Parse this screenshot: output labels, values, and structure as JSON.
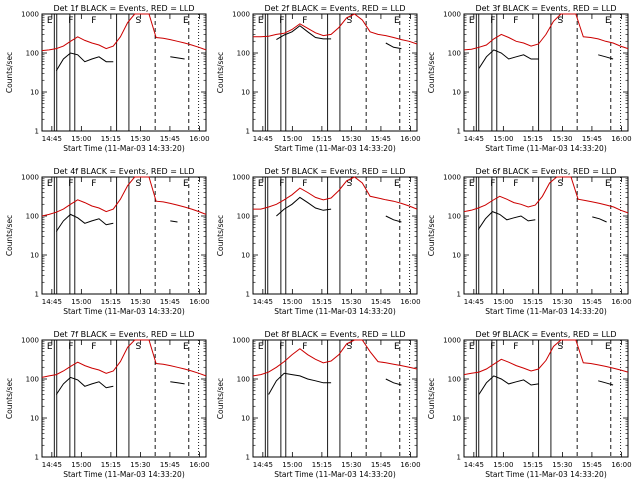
{
  "chart_data": {
    "type": "line",
    "y_scale": "log",
    "ylim": [
      1,
      1000
    ],
    "x_tick_labels": [
      "14:45",
      "15:00",
      "15:15",
      "15:30",
      "15:45",
      "16:00"
    ],
    "y_tick_labels": [
      "1",
      "10",
      "100",
      "1000"
    ],
    "xlabel": "Start Time (11-Mar-03 14:33:20)",
    "ylabel": "Counts/sec",
    "legend_text": "BLACK = Events, RED = LLD",
    "series_colors": {
      "Events": "#000000",
      "LLD": "#cc0000"
    },
    "panels": [
      {
        "title": "Det 1f",
        "marks": [
          "E",
          "F",
          "F",
          "S",
          "E"
        ],
        "red": [
          115,
          120,
          130,
          150,
          200,
          260,
          210,
          180,
          160,
          130,
          150,
          260,
          600,
          1000,
          1000,
          1000,
          250,
          240,
          220,
          200,
          180,
          160,
          140,
          120
        ],
        "black": [
          null,
          null,
          35,
          70,
          100,
          90,
          60,
          70,
          80,
          60,
          60,
          null,
          null,
          null,
          null,
          null,
          null,
          null,
          80,
          75,
          70,
          null,
          null,
          null
        ]
      },
      {
        "title": "Det 2f",
        "marks": [
          "E",
          "F",
          "F",
          "S",
          "E"
        ],
        "red": [
          260,
          260,
          270,
          300,
          320,
          400,
          560,
          430,
          330,
          280,
          300,
          450,
          800,
          1000,
          700,
          350,
          300,
          280,
          250,
          220,
          200,
          170
        ],
        "black": [
          null,
          null,
          null,
          220,
          290,
          350,
          500,
          350,
          250,
          230,
          230,
          null,
          null,
          null,
          null,
          null,
          null,
          180,
          140,
          130,
          null,
          null
        ]
      },
      {
        "title": "Det 3f",
        "marks": [
          "E",
          "F",
          "F",
          "S",
          "E"
        ],
        "red": [
          120,
          125,
          140,
          160,
          230,
          300,
          250,
          200,
          180,
          150,
          170,
          300,
          650,
          1000,
          1000,
          1000,
          260,
          250,
          230,
          200,
          180,
          150,
          130
        ],
        "black": [
          null,
          null,
          40,
          80,
          120,
          100,
          70,
          80,
          90,
          70,
          70,
          null,
          null,
          null,
          null,
          null,
          null,
          null,
          90,
          80,
          70,
          null,
          null
        ]
      },
      {
        "title": "Det 4f",
        "marks": [
          "E",
          "F",
          "F",
          "S",
          "E"
        ],
        "red": [
          100,
          110,
          125,
          150,
          200,
          260,
          220,
          180,
          160,
          130,
          150,
          270,
          600,
          1000,
          1000,
          1000,
          240,
          230,
          210,
          190,
          170,
          150,
          130,
          110
        ],
        "black": [
          null,
          null,
          40,
          75,
          110,
          90,
          65,
          75,
          85,
          60,
          65,
          null,
          null,
          null,
          null,
          null,
          null,
          null,
          75,
          70,
          null,
          null,
          null,
          null
        ]
      },
      {
        "title": "Det 5f",
        "marks": [
          "E",
          "F",
          "F",
          "S",
          "E"
        ],
        "red": [
          150,
          150,
          170,
          200,
          260,
          350,
          520,
          400,
          300,
          260,
          290,
          450,
          800,
          1000,
          700,
          320,
          290,
          260,
          240,
          210,
          180,
          150
        ],
        "black": [
          null,
          null,
          null,
          100,
          150,
          200,
          300,
          220,
          160,
          140,
          150,
          null,
          null,
          null,
          null,
          null,
          null,
          100,
          80,
          70,
          null,
          null
        ]
      },
      {
        "title": "Det 6f",
        "marks": [
          "E",
          "F",
          "F",
          "S",
          "E"
        ],
        "red": [
          130,
          140,
          160,
          190,
          250,
          320,
          270,
          220,
          200,
          170,
          190,
          320,
          700,
          1000,
          1000,
          1000,
          270,
          250,
          230,
          210,
          190,
          170,
          140,
          120
        ],
        "black": [
          null,
          null,
          45,
          85,
          130,
          110,
          80,
          90,
          100,
          75,
          80,
          null,
          null,
          null,
          null,
          null,
          null,
          null,
          95,
          85,
          70,
          null,
          null,
          null
        ]
      },
      {
        "title": "Det 7f",
        "marks": [
          "E",
          "F",
          "F",
          "S",
          "E"
        ],
        "red": [
          110,
          120,
          130,
          160,
          210,
          270,
          220,
          190,
          170,
          140,
          160,
          280,
          650,
          1000,
          1000,
          1000,
          250,
          240,
          220,
          200,
          180,
          160,
          140,
          120
        ],
        "black": [
          null,
          null,
          40,
          75,
          110,
          95,
          65,
          75,
          85,
          60,
          65,
          null,
          null,
          null,
          null,
          null,
          null,
          null,
          85,
          80,
          75,
          null,
          null,
          null
        ]
      },
      {
        "title": "Det 8f",
        "marks": [
          "E",
          "F",
          "F",
          "S",
          "E"
        ],
        "red": [
          120,
          130,
          150,
          200,
          280,
          420,
          600,
          420,
          320,
          260,
          290,
          420,
          800,
          1000,
          1000,
          500,
          280,
          260,
          240,
          220,
          200,
          180
        ],
        "black": [
          null,
          null,
          40,
          90,
          140,
          130,
          120,
          100,
          90,
          80,
          80,
          null,
          null,
          null,
          null,
          null,
          null,
          100,
          80,
          70,
          null,
          null
        ]
      },
      {
        "title": "Det 9f",
        "marks": [
          "E",
          "F",
          "F",
          "S",
          "E"
        ],
        "red": [
          130,
          140,
          150,
          180,
          240,
          320,
          270,
          220,
          190,
          160,
          180,
          300,
          680,
          1000,
          1000,
          1000,
          260,
          250,
          230,
          210,
          190,
          170,
          150
        ],
        "black": [
          null,
          null,
          40,
          80,
          120,
          100,
          75,
          85,
          95,
          70,
          75,
          null,
          null,
          null,
          null,
          null,
          null,
          null,
          90,
          80,
          70,
          null,
          null
        ]
      }
    ]
  }
}
